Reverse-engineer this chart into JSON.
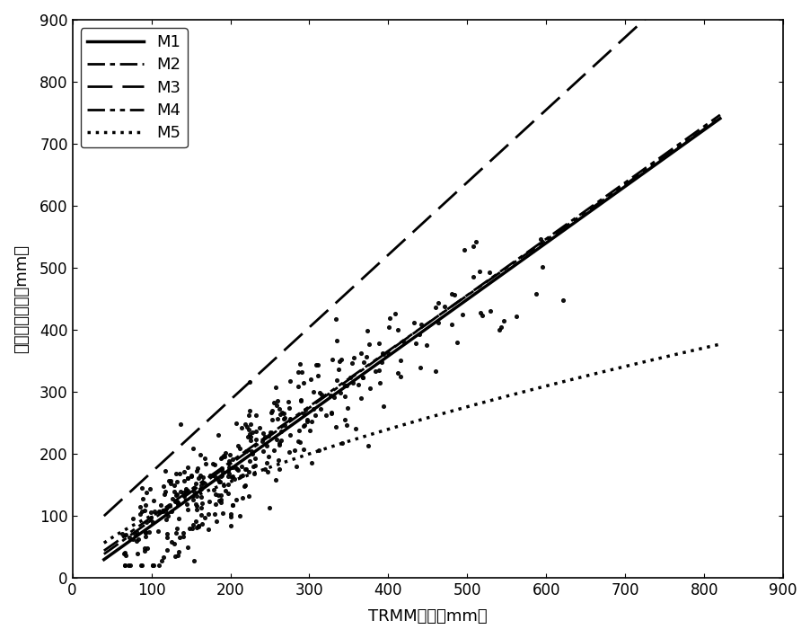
{
  "xlabel": "TRMM数据（mm）",
  "ylabel": "实测年降水量（mm）",
  "xlim": [
    0,
    900
  ],
  "ylim": [
    0,
    900
  ],
  "xticks": [
    0,
    100,
    200,
    300,
    400,
    500,
    600,
    700,
    800,
    900
  ],
  "yticks": [
    0,
    100,
    200,
    300,
    400,
    500,
    600,
    700,
    800,
    900
  ],
  "scatter_color": "#000000",
  "scatter_size": 7,
  "line_color": "#000000",
  "M1_slope": 0.912,
  "M1_intercept": -7.0,
  "M2_slope": 0.908,
  "M2_intercept": 2.0,
  "M3_slope": 1.17,
  "M3_intercept": 53.0,
  "M4_slope": 0.895,
  "M4_intercept": 8.0,
  "M5_a": 5.5,
  "M5_b": 0.63,
  "legend_loc": "upper left",
  "font_size": 13,
  "tick_font_size": 12,
  "seed": 42,
  "n_points": 400,
  "data_slope": 0.912,
  "data_intercept": -5.0,
  "data_scatter": 40,
  "x_min_data": 50,
  "x_max_data": 630
}
